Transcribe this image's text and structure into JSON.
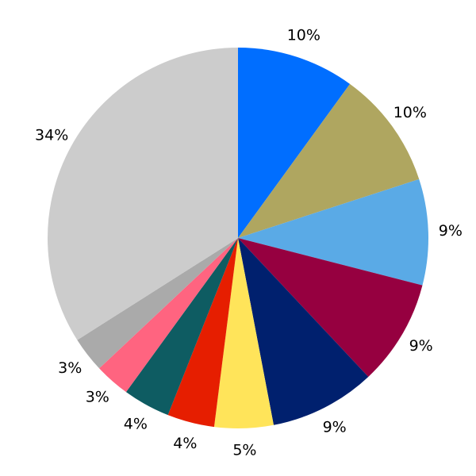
{
  "chart_data": {
    "type": "pie",
    "values": [
      10,
      10,
      9,
      9,
      9,
      5,
      4,
      4,
      3,
      3,
      34
    ],
    "value_labels": [
      "10%",
      "10%",
      "9%",
      "9%",
      "9%",
      "5%",
      "4%",
      "4%",
      "3%",
      "3%",
      "34%"
    ],
    "colors": [
      "#006eff",
      "#afa660",
      "#5aaae6",
      "#960040",
      "#00206e",
      "#ffe45a",
      "#e61e00",
      "#0e5c62",
      "#ff6480",
      "#aaaaaa",
      "#cccccc"
    ]
  }
}
